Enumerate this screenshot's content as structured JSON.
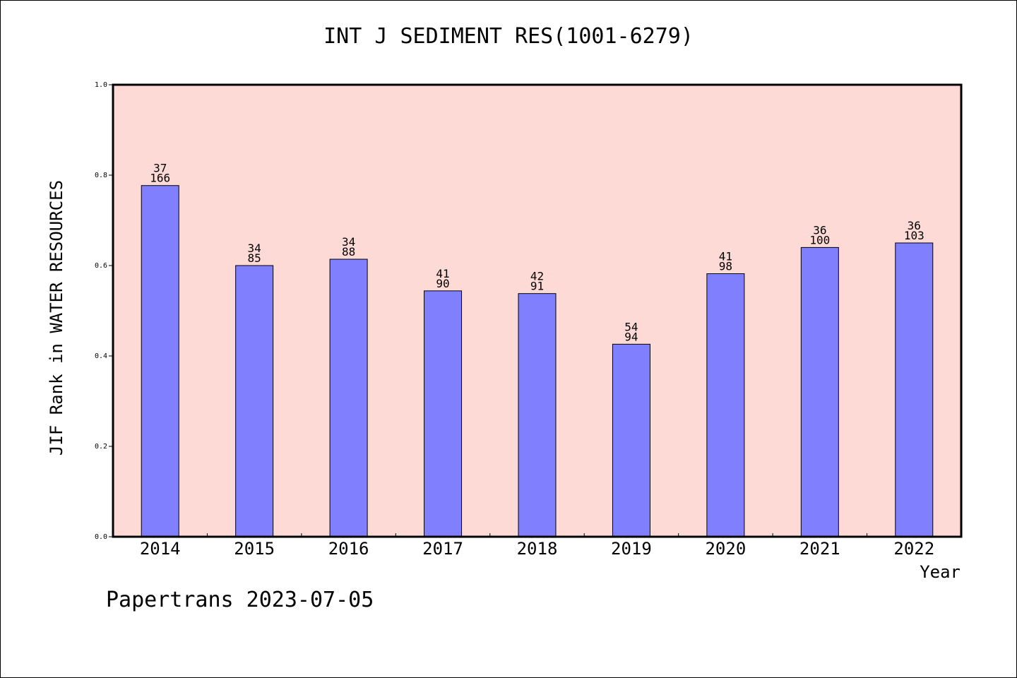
{
  "chart_data": {
    "type": "bar",
    "title": "INT J SEDIMENT RES(1001-6279)",
    "xlabel": "Year",
    "ylabel": "JIF Rank in WATER RESOURCES",
    "ylim": [
      0,
      1
    ],
    "yticks": [
      "0.0",
      "0.2",
      "0.4",
      "0.6",
      "0.8",
      "1.0"
    ],
    "categories": [
      "2014",
      "2015",
      "2016",
      "2017",
      "2018",
      "2019",
      "2020",
      "2021",
      "2022"
    ],
    "values": [
      0.777,
      0.6,
      0.614,
      0.544,
      0.538,
      0.426,
      0.582,
      0.64,
      0.65
    ],
    "labels_top": [
      "37",
      "34",
      "34",
      "41",
      "42",
      "54",
      "41",
      "36",
      "36"
    ],
    "labels_bottom": [
      "166",
      "85",
      "88",
      "90",
      "91",
      "94",
      "98",
      "100",
      "103"
    ],
    "grid": false,
    "colors": {
      "plot_bg": "#fddad6",
      "bar": "#8080ff",
      "bar_edge": "#000000"
    }
  },
  "footer": "Papertrans 2023-07-05"
}
